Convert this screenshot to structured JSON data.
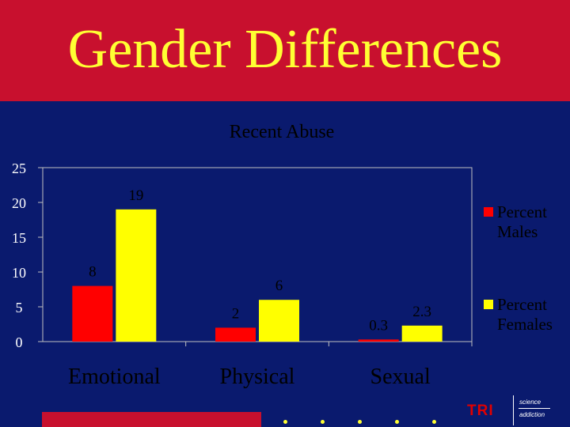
{
  "slide": {
    "title": "Gender Differences",
    "logo_text": "TRI",
    "logo_sub_top": "science",
    "logo_sub_bottom": "addiction"
  },
  "colors": {
    "title_band": "#c8102e",
    "background": "#0a1a6e",
    "title_text": "#ffff33",
    "males": "#ff0000",
    "females": "#ffff00",
    "axis_text": "#ffffff"
  },
  "chart_data": {
    "type": "bar",
    "title": "Recent Abuse",
    "categories": [
      "Emotional",
      "Physical",
      "Sexual"
    ],
    "series": [
      {
        "name": "Percent Males",
        "color": "#ff0000",
        "values": [
          8,
          2,
          0.3
        ]
      },
      {
        "name": "Percent Females",
        "color": "#ffff00",
        "values": [
          19,
          6,
          2.3
        ]
      }
    ],
    "ylim": [
      0,
      25
    ],
    "yticks": [
      0,
      5,
      10,
      15,
      20,
      25
    ],
    "xlabel": "",
    "ylabel": "",
    "grid": false,
    "legend": "right"
  }
}
